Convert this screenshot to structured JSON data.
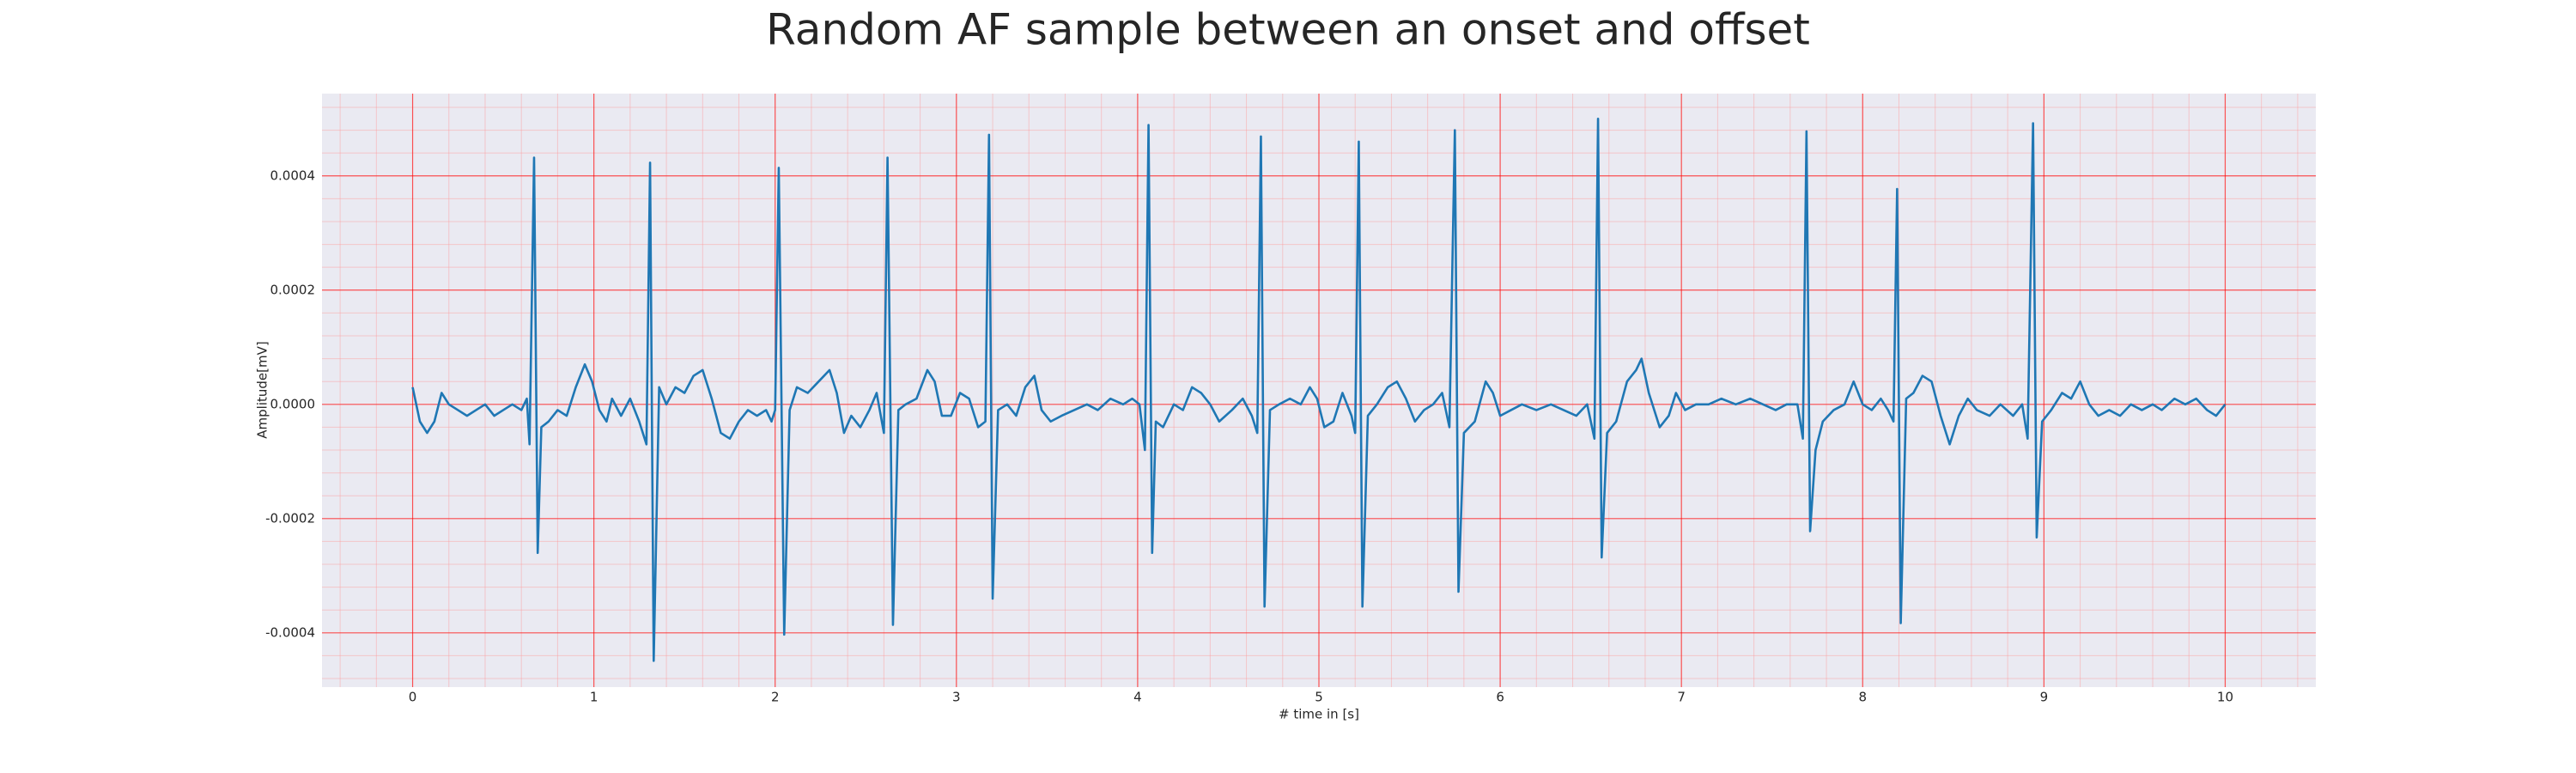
{
  "chart_data": {
    "type": "line",
    "title": "Random AF sample between an onset and offset",
    "xlabel": "# time in [s]",
    "ylabel": "Amplitude[mV]",
    "color": "#1f77b4",
    "grid": true,
    "xlim": [
      -0.5,
      10.5
    ],
    "xticks": [
      0,
      1,
      2,
      3,
      4,
      5,
      6,
      7,
      8,
      9,
      10
    ],
    "ylim": [
      -0.000495,
      0.000544
    ],
    "yticks": [
      -0.0004,
      -0.0002,
      {
        "value": 0,
        "label": "0.0000"
      },
      0.0002,
      0.0004
    ],
    "x": [
      0.0,
      0.04,
      0.08,
      0.12,
      0.16,
      0.2,
      0.25,
      0.3,
      0.35,
      0.4,
      0.45,
      0.5,
      0.55,
      0.6,
      0.63,
      0.645,
      0.67,
      0.69,
      0.71,
      0.75,
      0.8,
      0.85,
      0.9,
      0.95,
      0.99,
      1.03,
      1.07,
      1.1,
      1.15,
      1.2,
      1.25,
      1.29,
      1.31,
      1.33,
      1.36,
      1.4,
      1.45,
      1.5,
      1.55,
      1.6,
      1.65,
      1.7,
      1.75,
      1.8,
      1.85,
      1.9,
      1.95,
      1.98,
      2.0,
      2.02,
      2.05,
      2.08,
      2.12,
      2.18,
      2.24,
      2.3,
      2.34,
      2.38,
      2.42,
      2.47,
      2.52,
      2.56,
      2.6,
      2.62,
      2.65,
      2.68,
      2.72,
      2.78,
      2.84,
      2.88,
      2.92,
      2.97,
      3.02,
      3.07,
      3.12,
      3.16,
      3.18,
      3.2,
      3.23,
      3.28,
      3.33,
      3.38,
      3.43,
      3.47,
      3.52,
      3.58,
      3.65,
      3.72,
      3.78,
      3.85,
      3.92,
      3.97,
      4.01,
      4.04,
      4.06,
      4.08,
      4.1,
      4.14,
      4.2,
      4.25,
      4.3,
      4.35,
      4.4,
      4.45,
      4.52,
      4.58,
      4.63,
      4.66,
      4.68,
      4.7,
      4.73,
      4.78,
      4.84,
      4.9,
      4.95,
      4.99,
      5.03,
      5.08,
      5.13,
      5.18,
      5.2,
      5.22,
      5.24,
      5.27,
      5.32,
      5.38,
      5.43,
      5.48,
      5.53,
      5.58,
      5.63,
      5.68,
      5.72,
      5.75,
      5.77,
      5.8,
      5.86,
      5.92,
      5.96,
      6.0,
      6.06,
      6.12,
      6.2,
      6.28,
      6.35,
      6.42,
      6.48,
      6.52,
      6.54,
      6.56,
      6.59,
      6.64,
      6.7,
      6.75,
      6.78,
      6.82,
      6.88,
      6.93,
      6.97,
      7.02,
      7.08,
      7.15,
      7.22,
      7.3,
      7.38,
      7.45,
      7.52,
      7.58,
      7.64,
      7.67,
      7.69,
      7.71,
      7.74,
      7.78,
      7.84,
      7.9,
      7.95,
      8.0,
      8.05,
      8.1,
      8.14,
      8.17,
      8.19,
      8.21,
      8.24,
      8.28,
      8.33,
      8.38,
      8.43,
      8.48,
      8.53,
      8.58,
      8.63,
      8.7,
      8.76,
      8.83,
      8.88,
      8.91,
      8.94,
      8.96,
      8.99,
      9.04,
      9.1,
      9.15,
      9.2,
      9.25,
      9.3,
      9.36,
      9.42,
      9.48,
      9.54,
      9.6,
      9.65,
      9.72,
      9.78,
      9.84,
      9.9,
      9.95,
      10.0
    ],
    "values": [
      3e-05,
      -3e-05,
      -5e-05,
      -3e-05,
      2e-05,
      0,
      -1e-05,
      -2e-05,
      -1e-05,
      0,
      -2e-05,
      -1e-05,
      0,
      -1e-05,
      1e-05,
      -7e-05,
      0.000432,
      -0.00026,
      -4e-05,
      -3e-05,
      -1e-05,
      -2e-05,
      3e-05,
      7e-05,
      4e-05,
      -1e-05,
      -3e-05,
      1e-05,
      -2e-05,
      1e-05,
      -3e-05,
      -7e-05,
      0.000423,
      -0.000449,
      3e-05,
      0,
      3e-05,
      2e-05,
      5e-05,
      6e-05,
      1e-05,
      -5e-05,
      -6e-05,
      -3e-05,
      -1e-05,
      -2e-05,
      -1e-05,
      -3e-05,
      -1e-05,
      0.000414,
      -0.000403,
      -1e-05,
      3e-05,
      2e-05,
      4e-05,
      6e-05,
      2e-05,
      -5e-05,
      -2e-05,
      -4e-05,
      -1e-05,
      2e-05,
      -5e-05,
      0.000432,
      -0.000386,
      -1e-05,
      0,
      1e-05,
      6e-05,
      4e-05,
      -2e-05,
      -2e-05,
      2e-05,
      1e-05,
      -4e-05,
      -3e-05,
      0.000472,
      -0.00034,
      -1e-05,
      0,
      -2e-05,
      3e-05,
      5e-05,
      -1e-05,
      -3e-05,
      -2e-05,
      -1e-05,
      0,
      -1e-05,
      1e-05,
      0,
      1e-05,
      0,
      -8e-05,
      0.000489,
      -0.00026,
      -3e-05,
      -4e-05,
      0,
      -1e-05,
      3e-05,
      2e-05,
      0,
      -3e-05,
      -1e-05,
      1e-05,
      -2e-05,
      -5e-05,
      0.000469,
      -0.000354,
      -1e-05,
      0,
      1e-05,
      0,
      3e-05,
      1e-05,
      -4e-05,
      -3e-05,
      2e-05,
      -2e-05,
      -5e-05,
      0.00046,
      -0.000354,
      -2e-05,
      0,
      3e-05,
      4e-05,
      1e-05,
      -3e-05,
      -1e-05,
      0,
      2e-05,
      -4e-05,
      0.00048,
      -0.000328,
      -5e-05,
      -3e-05,
      4e-05,
      2e-05,
      -2e-05,
      -1e-05,
      0,
      -1e-05,
      0,
      -1e-05,
      -2e-05,
      0,
      -6e-05,
      0.0005,
      -0.000268,
      -5e-05,
      -3e-05,
      4e-05,
      6e-05,
      8e-05,
      2e-05,
      -4e-05,
      -2e-05,
      2e-05,
      -1e-05,
      0,
      0,
      1e-05,
      0,
      1e-05,
      0,
      -1e-05,
      0,
      0,
      -6e-05,
      0.000478,
      -0.000222,
      -8e-05,
      -3e-05,
      -1e-05,
      0,
      4e-05,
      0,
      -1e-05,
      1e-05,
      -1e-05,
      -3e-05,
      0.000377,
      -0.000383,
      1e-05,
      2e-05,
      5e-05,
      4e-05,
      -2e-05,
      -7e-05,
      -2e-05,
      1e-05,
      -1e-05,
      -2e-05,
      0,
      -2e-05,
      0,
      -6e-05,
      0.000492,
      -0.000233,
      -3e-05,
      -1e-05,
      2e-05,
      1e-05,
      4e-05,
      0,
      -2e-05,
      -1e-05,
      -2e-05,
      0,
      -1e-05,
      0,
      -1e-05,
      1e-05,
      0,
      1e-05,
      -1e-05,
      -2e-05,
      0
    ]
  }
}
